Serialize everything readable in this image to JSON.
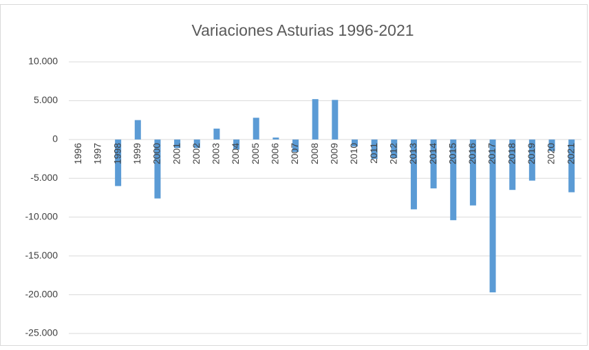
{
  "chart_data": {
    "type": "bar",
    "title": "Variaciones Asturias 1996-2021",
    "categories": [
      "1996",
      "1997",
      "1998",
      "1999",
      "2000",
      "2001",
      "2002",
      "2003",
      "2004",
      "2005",
      "2006",
      "2007",
      "2008",
      "2009",
      "2010",
      "2011",
      "2012",
      "2013",
      "2014",
      "2015",
      "2016",
      "2017",
      "2018",
      "2019",
      "2020",
      "2021"
    ],
    "values": [
      0,
      0,
      -6000,
      2500,
      -7600,
      -1100,
      -1100,
      1400,
      -1300,
      2800,
      250,
      -1600,
      5200,
      5100,
      -900,
      -2500,
      -2400,
      -9000,
      -6300,
      -10400,
      -8500,
      -19700,
      -6500,
      -5300,
      -1500,
      -6800
    ],
    "color": "#5b9bd5",
    "ylim": [
      -25000,
      10000
    ],
    "yticks": [
      {
        "value": -25000,
        "label": "-25.000"
      },
      {
        "value": -20000,
        "label": "-20.000"
      },
      {
        "value": -15000,
        "label": "-15.000"
      },
      {
        "value": -10000,
        "label": "-10.000"
      },
      {
        "value": -5000,
        "label": "-5.000"
      },
      0,
      {
        "value": 5000,
        "label": "5.000"
      },
      {
        "value": 10000,
        "label": "10.000"
      }
    ],
    "grid": true
  }
}
